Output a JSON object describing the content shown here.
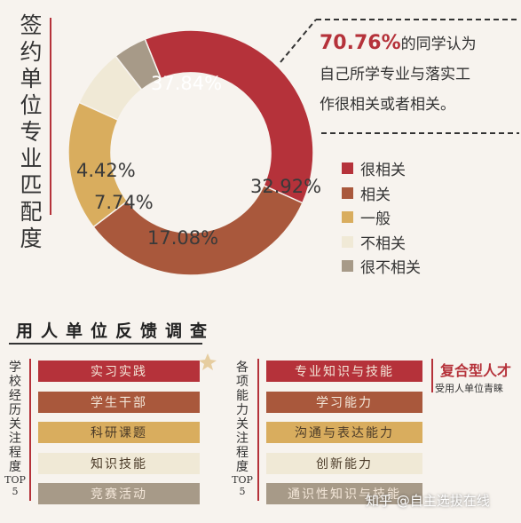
{
  "title": "签约单位专业匹配度",
  "colors": {
    "very_related": "#b5323a",
    "related": "#a9583c",
    "general": "#d9ad5e",
    "unrelated": "#f0e9d6",
    "very_unrelated": "#a79a88",
    "accent": "#b5323a"
  },
  "callout": {
    "highlight": "70.76%",
    "line1_rest": "的同学认为",
    "line2": "自己所学专业与落实工",
    "line3": "作很相关或者相关。"
  },
  "chart_data": {
    "type": "pie",
    "title": "签约单位专业匹配度",
    "donut": true,
    "labels": [
      "很相关",
      "相关",
      "一般",
      "不相关",
      "很不相关"
    ],
    "values": [
      37.84,
      32.92,
      17.08,
      7.74,
      4.42
    ],
    "value_labels": [
      "37.84%",
      "32.92%",
      "17.08%",
      "7.74%",
      "4.42%"
    ],
    "legend_position": "right"
  },
  "section": {
    "title": "用人单位反馈调查"
  },
  "left_panel": {
    "side_label": "学校经历关注程度",
    "top_label": "TOP",
    "top_num": "5",
    "bars": [
      "实习实践",
      "学生干部",
      "科研课题",
      "知识技能",
      "竞赛活动"
    ]
  },
  "right_panel": {
    "side_label": "各项能力关注程度",
    "top_label": "TOP",
    "top_num": "5",
    "bars": [
      "专业知识与技能",
      "学习能力",
      "沟通与表达能力",
      "创新能力",
      "通识性知识与技能"
    ]
  },
  "badge": {
    "title": "复合型人才",
    "subtitle": "受用人单位青睐"
  },
  "watermark": "知乎 @自主选拔在线"
}
